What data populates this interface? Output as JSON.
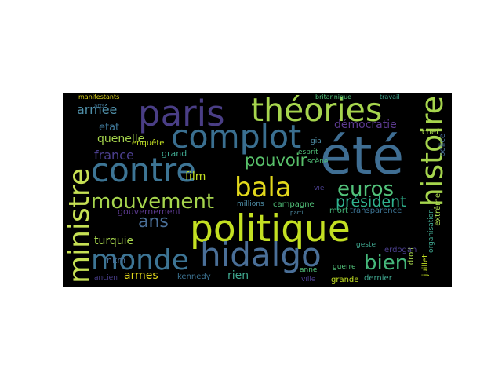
{
  "words": {
    "ete": "été",
    "politique": "politique",
    "paris": "paris",
    "theories": "théories",
    "complot": "complot",
    "contre": "contre",
    "histoire": "histoire",
    "ministre": "ministre",
    "hidalgo": "hidalgo",
    "monde": "monde",
    "bala": "bala",
    "mouvement": "mouvement",
    "euros": "euros",
    "bien": "bien",
    "pouvoir": "pouvoir",
    "president": "président",
    "ans": "ans",
    "france": "france",
    "armee": "armée",
    "quenelle": "quenelle",
    "democratie": "démocratie",
    "etat": "etat",
    "film": "film",
    "turquie": "turquie",
    "armes": "armes",
    "rien": "rien",
    "gouvernement": "gouvernement",
    "grand": "grand",
    "enquete": "enquête",
    "chef": "chef",
    "police": "police",
    "extreme": "extrême",
    "mort": "mort",
    "transparence": "transparence",
    "campagne": "campagne",
    "millions": "millions",
    "nkm": "nkm",
    "kennedy": "kennedy",
    "anne": "anne",
    "ville": "ville",
    "guerre": "guerre",
    "grande": "grande",
    "dernier": "dernier",
    "juillet": "juillet",
    "droit": "droit",
    "organisation": "organisation",
    "erdogan": "erdogan",
    "geste": "geste",
    "scene": "scène",
    "esprit": "esprit",
    "vie": "vie",
    "gia": "gia",
    "manifestants": "manifestants",
    "britannique": "britannique",
    "travail": "travail",
    "ancien": "ancien",
    "arts": "arts",
    "parti": "parti"
  }
}
